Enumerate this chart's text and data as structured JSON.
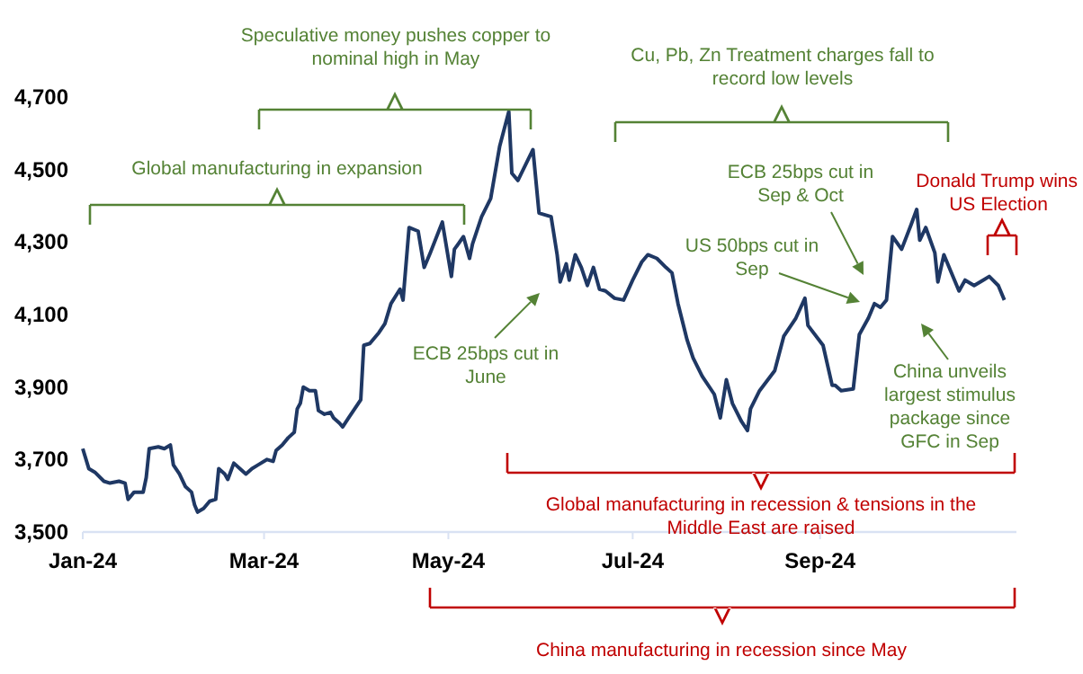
{
  "chart_data": {
    "type": "line",
    "x": [
      "2024-01-01",
      "2024-01-03",
      "2024-01-05",
      "2024-01-08",
      "2024-01-10",
      "2024-01-13",
      "2024-01-15",
      "2024-01-16",
      "2024-01-18",
      "2024-01-21",
      "2024-01-22",
      "2024-01-23",
      "2024-01-26",
      "2024-01-28",
      "2024-01-30",
      "2024-01-31",
      "2024-02-02",
      "2024-02-04",
      "2024-02-06",
      "2024-02-07",
      "2024-02-08",
      "2024-02-10",
      "2024-02-12",
      "2024-02-14",
      "2024-02-15",
      "2024-02-17",
      "2024-02-18",
      "2024-02-20",
      "2024-02-22",
      "2024-02-24",
      "2024-02-26",
      "2024-02-28",
      "2024-03-02",
      "2024-03-04",
      "2024-03-05",
      "2024-03-07",
      "2024-03-09",
      "2024-03-11",
      "2024-03-12",
      "2024-03-13",
      "2024-03-14",
      "2024-03-16",
      "2024-03-18",
      "2024-03-19",
      "2024-03-21",
      "2024-03-23",
      "2024-03-24",
      "2024-03-26",
      "2024-03-27",
      "2024-03-29",
      "2024-04-02",
      "2024-04-03",
      "2024-04-05",
      "2024-04-08",
      "2024-04-10",
      "2024-04-12",
      "2024-04-15",
      "2024-04-16",
      "2024-04-18",
      "2024-04-21",
      "2024-04-23",
      "2024-04-25",
      "2024-04-29",
      "2024-05-02",
      "2024-05-03",
      "2024-05-06",
      "2024-05-08",
      "2024-05-09",
      "2024-05-12",
      "2024-05-15",
      "2024-05-18",
      "2024-05-21",
      "2024-05-22",
      "2024-05-24",
      "2024-05-29",
      "2024-05-31",
      "2024-06-04",
      "2024-06-06",
      "2024-06-07",
      "2024-06-09",
      "2024-06-10",
      "2024-06-12",
      "2024-06-14",
      "2024-06-16",
      "2024-06-18",
      "2024-06-20",
      "2024-06-22",
      "2024-06-25",
      "2024-06-28",
      "2024-07-01",
      "2024-07-04",
      "2024-07-06",
      "2024-07-09",
      "2024-07-12",
      "2024-07-14",
      "2024-07-16",
      "2024-07-19",
      "2024-07-21",
      "2024-07-24",
      "2024-07-28",
      "2024-07-30",
      "2024-08-01",
      "2024-08-03",
      "2024-08-06",
      "2024-08-08",
      "2024-08-09",
      "2024-08-12",
      "2024-08-17",
      "2024-08-20",
      "2024-08-24",
      "2024-08-27",
      "2024-08-28",
      "2024-09-02",
      "2024-09-05",
      "2024-09-06",
      "2024-09-08",
      "2024-09-12",
      "2024-09-14",
      "2024-09-17",
      "2024-09-19",
      "2024-09-21",
      "2024-09-23",
      "2024-09-25",
      "2024-09-28",
      "2024-10-01",
      "2024-10-03",
      "2024-10-04",
      "2024-10-06",
      "2024-10-09",
      "2024-10-10",
      "2024-10-12",
      "2024-10-15",
      "2024-10-17",
      "2024-10-19",
      "2024-10-22",
      "2024-10-25",
      "2024-10-27",
      "2024-10-30",
      "2024-11-01"
    ],
    "series": [
      {
        "color": "#1f3864",
        "values": [
          3730,
          3675,
          3665,
          3640,
          3635,
          3640,
          3635,
          3590,
          3610,
          3610,
          3650,
          3730,
          3735,
          3730,
          3740,
          3685,
          3660,
          3625,
          3610,
          3575,
          3555,
          3565,
          3585,
          3590,
          3675,
          3660,
          3645,
          3690,
          3675,
          3660,
          3675,
          3685,
          3700,
          3695,
          3725,
          3740,
          3760,
          3775,
          3840,
          3855,
          3900,
          3890,
          3890,
          3835,
          3825,
          3830,
          3815,
          3800,
          3790,
          3815,
          3865,
          4015,
          4020,
          4050,
          4075,
          4130,
          4170,
          4140,
          4340,
          4330,
          4230,
          4270,
          4355,
          4205,
          4280,
          4315,
          4255,
          4295,
          4370,
          4420,
          4565,
          4660,
          4490,
          4470,
          4555,
          4380,
          4370,
          4265,
          4190,
          4240,
          4195,
          4265,
          4230,
          4180,
          4230,
          4170,
          4165,
          4145,
          4140,
          4195,
          4245,
          4265,
          4255,
          4230,
          4215,
          4130,
          4030,
          3980,
          3930,
          3880,
          3815,
          3920,
          3855,
          3805,
          3780,
          3840,
          3890,
          3945,
          4040,
          4090,
          4145,
          4070,
          4015,
          3905,
          3905,
          3890,
          3895,
          4045,
          4090,
          4130,
          4120,
          4140,
          4315,
          4280,
          4345,
          4390,
          4305,
          4340,
          4270,
          4190,
          4265,
          4205,
          4165,
          4195,
          4180,
          4195,
          4205,
          4180,
          4140
        ]
      }
    ],
    "xlim": [
      "2024-01-01",
      "2024-11-05"
    ],
    "xticks": [
      {
        "value": "2024-01-01",
        "label": "Jan-24"
      },
      {
        "value": "2024-03-01",
        "label": "Mar-24"
      },
      {
        "value": "2024-05-01",
        "label": "May-24"
      },
      {
        "value": "2024-07-01",
        "label": "Jul-24"
      },
      {
        "value": "2024-09-01",
        "label": "Sep-24"
      }
    ],
    "ylim": [
      3500,
      4700
    ],
    "yticks": [
      {
        "value": 3500,
        "label": "3,500"
      },
      {
        "value": 3700,
        "label": "3,700"
      },
      {
        "value": 3900,
        "label": "3,900"
      },
      {
        "value": 4100,
        "label": "4,100"
      },
      {
        "value": 4300,
        "label": "4,300"
      },
      {
        "value": 4500,
        "label": "4,500"
      },
      {
        "value": 4700,
        "label": "4,700"
      }
    ],
    "grid": false,
    "marker": "none",
    "line_style": "solid",
    "annotations": [
      "Global manufacturing in expansion",
      "Speculative money pushes copper to nominal high in May",
      "Cu, Pb, Zn Treatment charges fall to record low levels",
      "Donald Trump wins US Election",
      "Global manufacturing in recession & tensions in the Middle East are raised",
      "China manufacturing in recession since May",
      "ECB 25bps cut in June",
      "US 50bps cut in Sep",
      "ECB 25bps cut in Sep & Oct",
      "China unveils largest stimulus package since GFC in Sep"
    ]
  }
}
